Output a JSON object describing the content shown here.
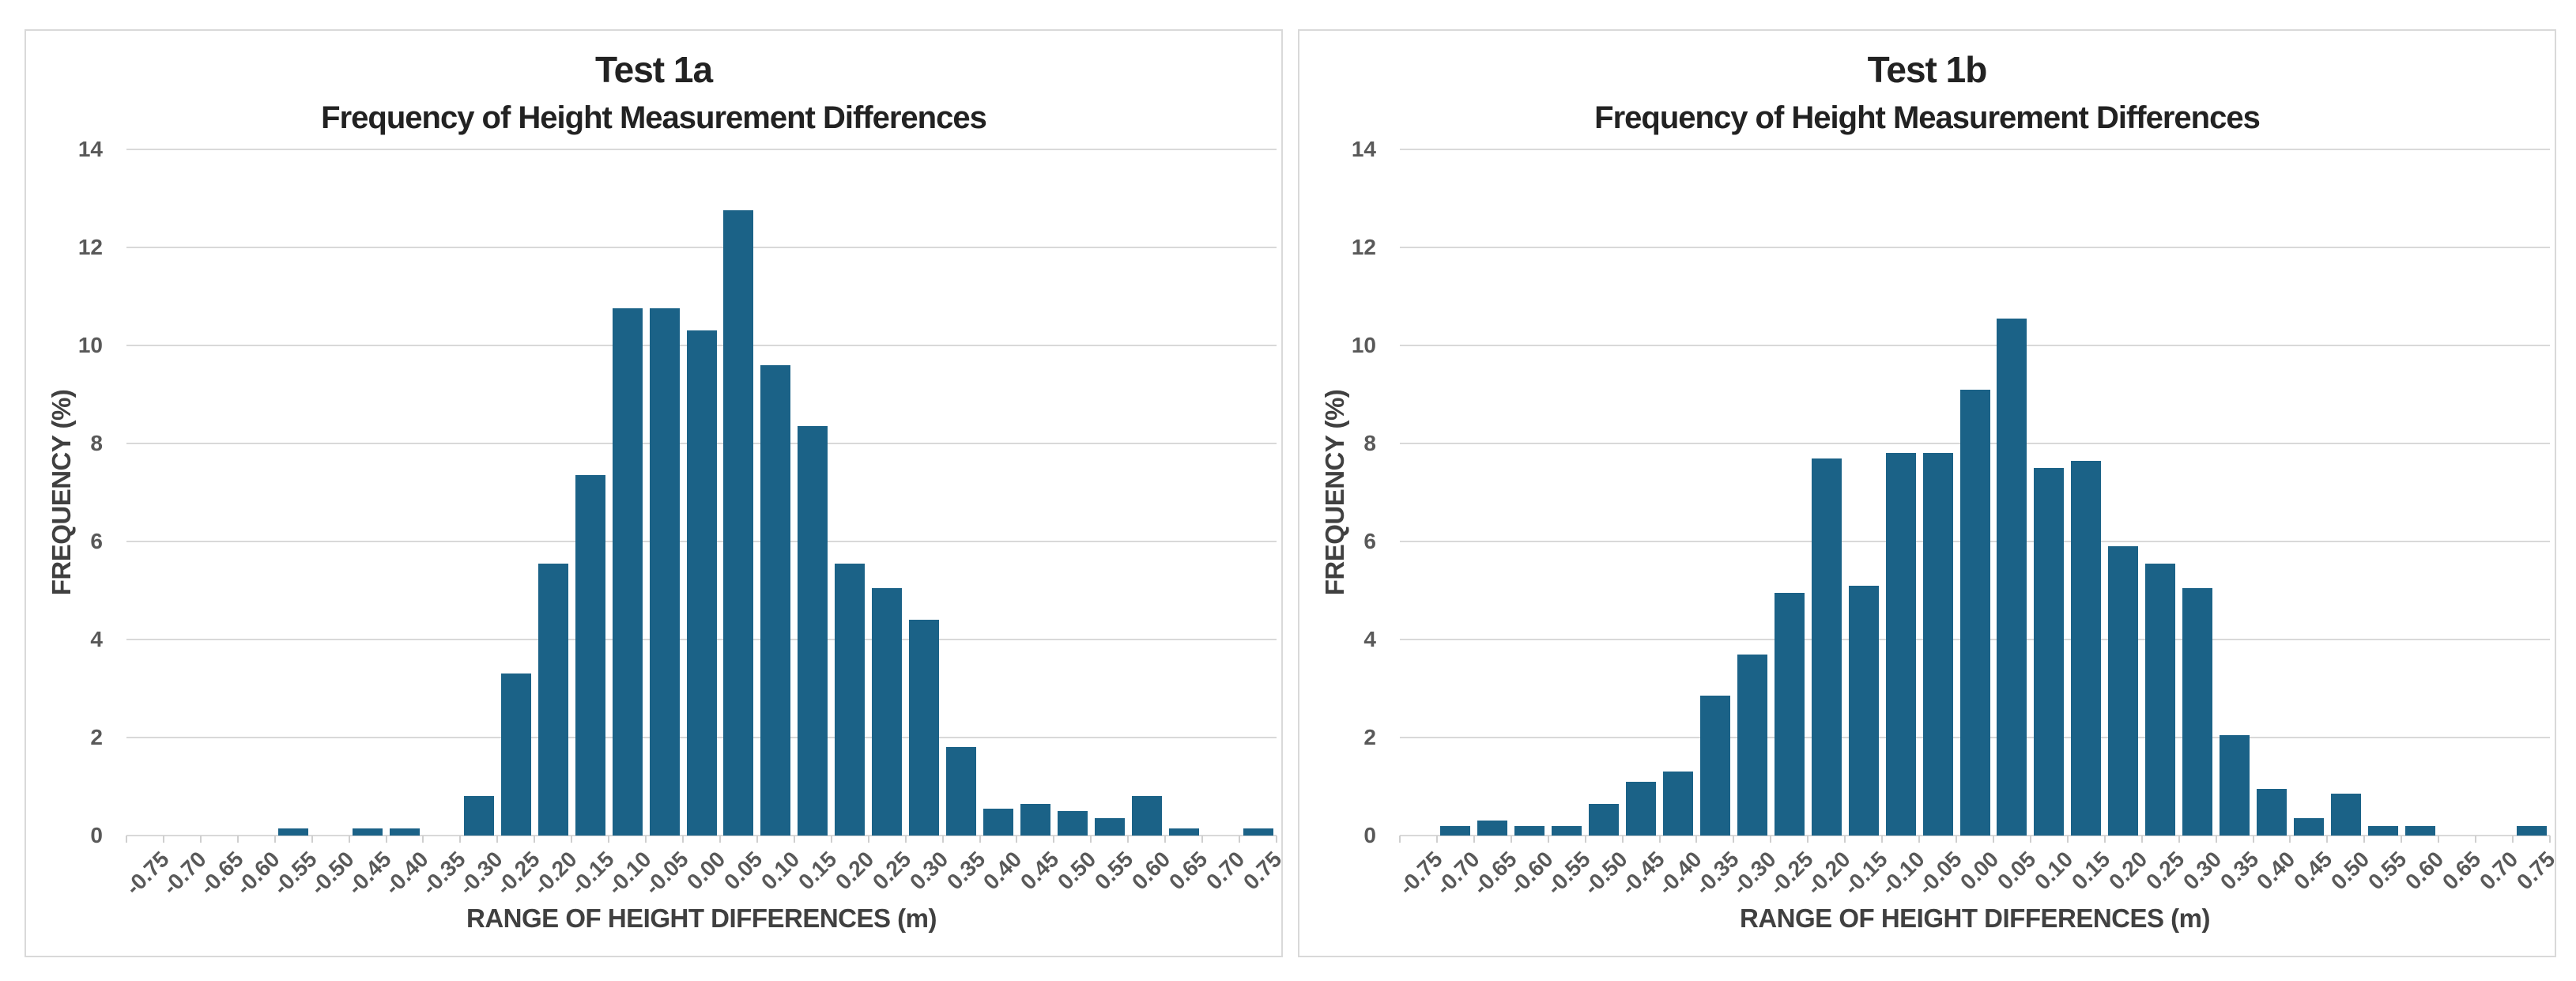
{
  "style": {
    "bar_color": "#1b6287",
    "gridline_color": "#d9d9d9",
    "tick_label_color": "#595959",
    "title_color": "#222222",
    "axis_title_color": "#404040",
    "panel_border_color": "#d9d9d9",
    "background": "#ffffff"
  },
  "chart_data": [
    {
      "type": "bar",
      "title": "Test 1a",
      "subtitle": "Frequency of Height Measurement Differences",
      "xlabel": "RANGE OF HEIGHT DIFFERENCES (m)",
      "ylabel": "FREQUENCY (%)",
      "ylim": [
        0,
        14
      ],
      "yticks": [
        0,
        2,
        4,
        6,
        8,
        10,
        12,
        14
      ],
      "grid": "horizontal",
      "legend": "none",
      "categories": [
        "-0.75",
        "-0.70",
        "-0.65",
        "-0.60",
        "-0.55",
        "-0.50",
        "-0.45",
        "-0.40",
        "-0.35",
        "-0.30",
        "-0.25",
        "-0.20",
        "-0.15",
        "-0.10",
        "-0.05",
        "0.00",
        "0.05",
        "0.10",
        "0.15",
        "0.20",
        "0.25",
        "0.30",
        "0.35",
        "0.40",
        "0.45",
        "0.50",
        "0.55",
        "0.60",
        "0.65",
        "0.70",
        "0.75"
      ],
      "values": [
        0,
        0,
        0,
        0,
        0.15,
        0,
        0.15,
        0.15,
        0,
        0.8,
        3.3,
        5.55,
        7.35,
        10.75,
        10.75,
        10.3,
        12.75,
        9.6,
        8.35,
        5.55,
        5.05,
        4.4,
        1.8,
        0.55,
        0.65,
        0.5,
        0.35,
        0.8,
        0.15,
        0,
        0.15
      ]
    },
    {
      "type": "bar",
      "title": "Test 1b",
      "subtitle": "Frequency of Height Measurement Differences",
      "xlabel": "RANGE OF HEIGHT DIFFERENCES (m)",
      "ylabel": "FREQUENCY (%)",
      "ylim": [
        0,
        14
      ],
      "yticks": [
        0,
        2,
        4,
        6,
        8,
        10,
        12,
        14
      ],
      "grid": "horizontal",
      "legend": "none",
      "categories": [
        "-0.75",
        "-0.70",
        "-0.65",
        "-0.60",
        "-0.55",
        "-0.50",
        "-0.45",
        "-0.40",
        "-0.35",
        "-0.30",
        "-0.25",
        "-0.20",
        "-0.15",
        "-0.10",
        "-0.05",
        "0.00",
        "0.05",
        "0.10",
        "0.15",
        "0.20",
        "0.25",
        "0.30",
        "0.35",
        "0.40",
        "0.45",
        "0.50",
        "0.55",
        "0.60",
        "0.65",
        "0.70",
        "0.75"
      ],
      "values": [
        0,
        0.2,
        0.3,
        0.2,
        0.2,
        0.65,
        1.1,
        1.3,
        2.85,
        3.7,
        4.95,
        7.7,
        5.1,
        7.8,
        7.8,
        9.1,
        10.55,
        7.5,
        7.65,
        5.9,
        5.55,
        5.05,
        2.05,
        0.95,
        0.35,
        0.85,
        0.2,
        0.2,
        0,
        0,
        0.2
      ]
    }
  ]
}
